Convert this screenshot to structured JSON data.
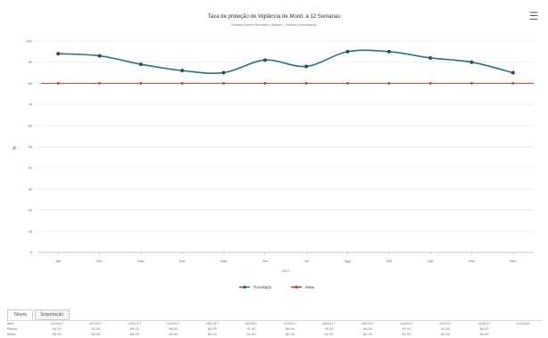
{
  "chart_data": {
    "type": "line",
    "title": "Taxa de proteção de Vigilância de Monit. à 12 Semanas",
    "subtitle": "Escola Ensino Primário e Básico - Dados Cumulativos",
    "xlabel": "2017",
    "ylabel": "%",
    "ylim": [
      0,
      100
    ],
    "yticks": [
      0,
      10,
      20,
      30,
      40,
      50,
      60,
      70,
      80,
      90,
      100
    ],
    "categories": [
      "Jan",
      "Fev",
      "Mar",
      "Abr",
      "Mai",
      "Jun",
      "Jul",
      "Ago",
      "Set",
      "Out",
      "Nov",
      "Dez"
    ],
    "series": [
      {
        "name": "Resultado",
        "color": "#2b6f8a",
        "values": [
          94,
          93,
          89,
          86,
          85,
          91,
          88,
          95,
          95,
          92,
          90,
          85
        ]
      },
      {
        "name": "Meta",
        "color": "#c0392b",
        "values": [
          80,
          80,
          80,
          80,
          80,
          80,
          80,
          80,
          80,
          80,
          80,
          80
        ]
      }
    ],
    "grid": true,
    "legend_position": "bottom"
  },
  "menu_icon": "hamburger-menu-icon",
  "tabs": [
    {
      "label": "Tabela",
      "active": true
    },
    {
      "label": "Exportação",
      "active": false
    }
  ],
  "table": {
    "header": [
      "Mês",
      "01/2017",
      "02/2017",
      "03/2017",
      "04/2017",
      "05/2017",
      "06/2017",
      "07/2017",
      "08/2017",
      "09/2017",
      "10/2017",
      "11/2017",
      "12/2017",
      "01/2018"
    ],
    "rows": [
      [
        "Result.",
        "94.00",
        "93.00",
        "89.00",
        "86.00",
        "85.00",
        "91.00",
        "88.00",
        "95.00",
        "95.00",
        "92.00",
        "90.00",
        "85.00",
        ""
      ],
      [
        "Meta",
        "80.00",
        "80.00",
        "80.00",
        "80.00",
        "80.00",
        "80.00",
        "80.00",
        "80.00",
        "80.00",
        "80.00",
        "80.00",
        "80.00",
        ""
      ]
    ]
  }
}
